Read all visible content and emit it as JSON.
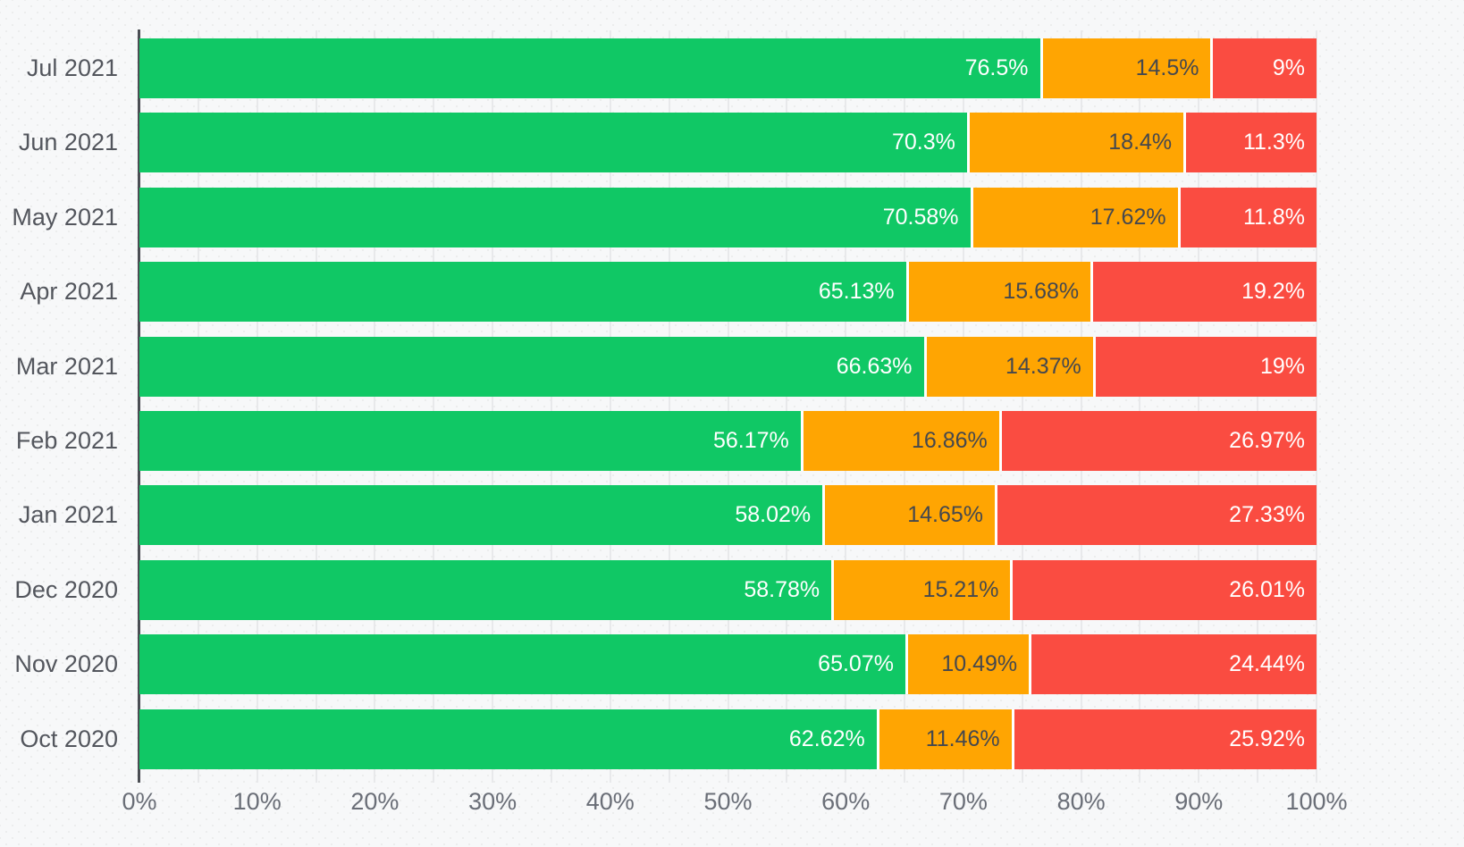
{
  "chart_data": {
    "type": "bar",
    "orientation": "horizontal",
    "stacked": true,
    "title": "",
    "xlabel": "",
    "ylabel": "",
    "xlim": [
      0,
      100
    ],
    "grid": "minor vertical gridlines every 5%",
    "legend": "none",
    "categories": [
      "Jul 2021",
      "Jun 2021",
      "May 2021",
      "Apr 2021",
      "Mar 2021",
      "Feb 2021",
      "Jan 2021",
      "Dec 2020",
      "Nov 2020",
      "Oct 2020"
    ],
    "series": [
      {
        "name": "green",
        "color": "#10c865",
        "label_color": "#ffffff",
        "values": [
          76.5,
          70.3,
          70.58,
          65.13,
          66.63,
          56.17,
          58.02,
          58.78,
          65.07,
          62.62
        ],
        "labels": [
          "76.5%",
          "70.3%",
          "70.58%",
          "65.13%",
          "66.63%",
          "56.17%",
          "58.02%",
          "58.78%",
          "65.07%",
          "62.62%"
        ]
      },
      {
        "name": "orange",
        "color": "#ffa502",
        "label_color": "#45484e",
        "values": [
          14.5,
          18.4,
          17.62,
          15.68,
          14.37,
          16.86,
          14.65,
          15.21,
          10.49,
          11.46
        ],
        "labels": [
          "14.5%",
          "18.4%",
          "17.62%",
          "15.68%",
          "14.37%",
          "16.86%",
          "14.65%",
          "15.21%",
          "10.49%",
          "11.46%"
        ]
      },
      {
        "name": "red",
        "color": "#fa4c41",
        "label_color": "#ffffff",
        "values": [
          9,
          11.3,
          11.8,
          19.2,
          19,
          26.97,
          27.33,
          26.01,
          24.44,
          25.92
        ],
        "labels": [
          "9%",
          "11.3%",
          "11.8%",
          "19.2%",
          "19%",
          "26.97%",
          "27.33%",
          "26.01%",
          "24.44%",
          "25.92%"
        ]
      }
    ],
    "x_ticks": [
      {
        "value": 0,
        "label": "0%"
      },
      {
        "value": 10,
        "label": "10%"
      },
      {
        "value": 20,
        "label": "20%"
      },
      {
        "value": 30,
        "label": "30%"
      },
      {
        "value": 40,
        "label": "40%"
      },
      {
        "value": 50,
        "label": "50%"
      },
      {
        "value": 60,
        "label": "60%"
      },
      {
        "value": 70,
        "label": "70%"
      },
      {
        "value": 80,
        "label": "80%"
      },
      {
        "value": 90,
        "label": "90%"
      },
      {
        "value": 100,
        "label": "100%"
      }
    ],
    "colors": {
      "axis_line": "#4b4e54",
      "gridline": "#e8e9eb",
      "background": "#f7f8f9",
      "category_label": "#53565d",
      "tick_label": "#6a6e77",
      "segment_border": "#ffffff"
    }
  }
}
